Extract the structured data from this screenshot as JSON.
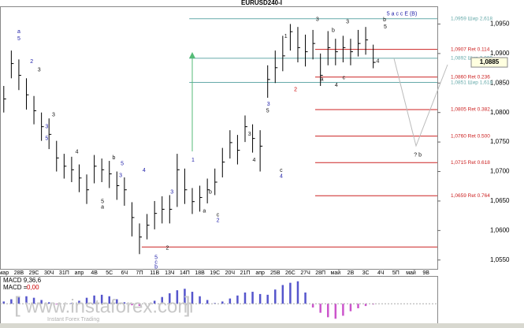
{
  "chart_data": {
    "type": "ohlc",
    "title": "EURUSD240-I",
    "color": "#000000",
    "categories": [
      "мар",
      null,
      "28В",
      null,
      "29С",
      null,
      "30Ч",
      null,
      "31П",
      null,
      "апр",
      null,
      "4В",
      null,
      "5С",
      null,
      "6Ч",
      null,
      "7П",
      null,
      "11В",
      null,
      "13Ч",
      null,
      "14П",
      null,
      "18В",
      null,
      "19С",
      null,
      "20Ч",
      null,
      "21П",
      null,
      "апр",
      null,
      "25В",
      null,
      "26С",
      null,
      "27Ч",
      null,
      "28П",
      null,
      "май",
      null,
      "2В",
      null,
      "3С",
      null,
      "4Ч",
      null,
      "5П",
      null,
      "май",
      null,
      "9В",
      null
    ],
    "high": [
      1.0845,
      1.0905,
      1.089,
      1.0858,
      1.0828,
      1.08,
      1.079,
      1.0752,
      1.073,
      1.0725,
      1.0712,
      1.0695,
      1.0728,
      1.0722,
      1.0718,
      1.07,
      1.069,
      1.0648,
      1.0612,
      1.0628,
      1.065,
      1.0658,
      1.066,
      1.073,
      1.0705,
      1.0672,
      1.0676,
      1.0688,
      1.0705,
      1.074,
      1.077,
      1.0762,
      1.0795,
      1.078,
      1.077,
      1.088,
      1.0905,
      1.093,
      1.095,
      1.0945,
      1.0932,
      1.094,
      1.09,
      1.0938,
      1.0925,
      1.093,
      1.0925,
      1.094,
      1.0945,
      1.0915,
      null,
      null,
      null,
      null,
      null,
      null,
      null,
      null
    ],
    "low": [
      1.08,
      1.0858,
      1.0838,
      1.0805,
      1.078,
      1.0752,
      1.0738,
      1.07,
      1.0688,
      1.0682,
      1.0665,
      1.0645,
      1.068,
      1.0682,
      1.0672,
      1.0652,
      1.0642,
      1.059,
      1.056,
      1.0585,
      1.0602,
      1.0612,
      1.0612,
      1.064,
      1.0645,
      1.0628,
      1.0632,
      1.0646,
      1.066,
      1.069,
      1.0722,
      1.0712,
      1.075,
      1.0732,
      1.07,
      1.0825,
      1.085,
      1.087,
      1.0905,
      1.0885,
      1.0878,
      1.089,
      1.0845,
      1.088,
      1.088,
      1.0885,
      1.088,
      1.0895,
      1.0898,
      1.0875,
      null,
      null,
      null,
      null,
      null,
      null,
      null,
      null
    ],
    "close": [
      1.0823,
      1.0883,
      1.0863,
      1.083,
      1.0803,
      1.0776,
      1.0763,
      1.0723,
      1.0709,
      1.0703,
      1.0689,
      1.0669,
      1.0709,
      1.0703,
      1.0696,
      1.0676,
      1.0669,
      1.0622,
      1.0589,
      1.0609,
      1.0629,
      1.0636,
      1.0636,
      1.0703,
      1.0669,
      1.0649,
      1.0656,
      1.0669,
      1.0682,
      1.0716,
      1.0749,
      1.0736,
      1.0776,
      1.0756,
      1.0743,
      1.0856,
      1.0876,
      1.0896,
      1.0937,
      1.091,
      1.0903,
      1.0917,
      1.0863,
      1.091,
      1.0903,
      1.091,
      1.0903,
      1.0917,
      1.0923,
      1.0885,
      null,
      null,
      null,
      null,
      null,
      null,
      null,
      null
    ],
    "ylim": [
      1.0535,
      1.098
    ],
    "yticks": [
      {
        "value": 1.055,
        "label": "1,0550"
      },
      {
        "value": 1.06,
        "label": "1,0600"
      },
      {
        "value": 1.065,
        "label": "1,0650"
      },
      {
        "value": 1.07,
        "label": "1,0700"
      },
      {
        "value": 1.075,
        "label": "1,0750"
      },
      {
        "value": 1.08,
        "label": "1,0800"
      },
      {
        "value": 1.085,
        "label": "1,0850"
      },
      {
        "value": 1.09,
        "label": "1,0900"
      },
      {
        "value": 1.095,
        "label": "1,0950"
      }
    ],
    "last_price": {
      "value": 1.0885,
      "label": "1,0885"
    },
    "levels": [
      {
        "value": 1.0959,
        "label": "1,0959 Шир 2,618",
        "color": "#66aaaa",
        "from": 24.6
      },
      {
        "value": 1.0907,
        "label": "1,0907 Ret 0.114",
        "color": "#cc2222",
        "from": 41.3
      },
      {
        "value": 1.0892,
        "label": "1,0892 Шир 2,000",
        "color": "#66aaaa",
        "from": 24.6
      },
      {
        "value": 1.086,
        "label": "1,0860 Ret 0.236",
        "color": "#cc2222",
        "from": 41.3
      },
      {
        "value": 1.0851,
        "label": "1,0851 Шир 1,618",
        "color": "#66aaaa",
        "from": 24.6
      },
      {
        "value": 1.0805,
        "label": "1,0805 Ret 0.382",
        "color": "#cc2222",
        "from": 41.3
      },
      {
        "value": 1.076,
        "label": "1,0760 Ret 0.500",
        "color": "#cc2222",
        "from": 41.3
      },
      {
        "value": 1.0715,
        "label": "1,0715 Ret 0.618",
        "color": "#cc2222",
        "from": 41.3
      },
      {
        "value": 1.0659,
        "label": "1,0659 Ret 0.764",
        "color": "#cc2222",
        "from": 41.3
      },
      {
        "value": 1.0572,
        "color": "#cc2222",
        "from": 18.3
      }
    ],
    "annotations": [
      {
        "text": "a",
        "x": 2,
        "y": 1.0937,
        "color": "#2222aa"
      },
      {
        "text": "5",
        "x": 2,
        "y": 1.0925,
        "color": "#2222aa"
      },
      {
        "text": "2",
        "x": 3.7,
        "y": 1.0886,
        "color": "#2222aa"
      },
      {
        "text": "3",
        "x": 4.7,
        "y": 1.0872,
        "color": "#111111"
      },
      {
        "text": "3",
        "x": 6.6,
        "y": 1.0796,
        "color": "#111111"
      },
      {
        "text": "3",
        "x": 5.7,
        "y": 1.0776,
        "color": "#2222aa"
      },
      {
        "text": "5",
        "x": 5.7,
        "y": 1.0756,
        "color": "#2222aa"
      },
      {
        "text": "4",
        "x": 9.7,
        "y": 1.0733,
        "color": "#111111"
      },
      {
        "text": "b",
        "x": 14.6,
        "y": 1.0723,
        "color": "#111111"
      },
      {
        "text": "5",
        "x": 15.7,
        "y": 1.0713,
        "color": "#2222aa"
      },
      {
        "text": "3",
        "x": 15.5,
        "y": 1.0693,
        "color": "#2222aa"
      },
      {
        "text": "4",
        "x": 18.6,
        "y": 1.0702,
        "color": "#2222aa"
      },
      {
        "text": "5",
        "x": 13.1,
        "y": 1.0649,
        "color": "#111111"
      },
      {
        "text": "a",
        "x": 13.1,
        "y": 1.064,
        "color": "#111111"
      },
      {
        "text": "5",
        "x": 20.2,
        "y": 1.0554,
        "color": "#2222aa"
      },
      {
        "text": "c",
        "x": 20.2,
        "y": 1.0546,
        "color": "#2222aa"
      },
      {
        "text": "b",
        "x": 20.2,
        "y": 1.0538,
        "color": "#2222aa"
      },
      {
        "text": "2",
        "x": 21.7,
        "y": 1.057,
        "color": "#111111"
      },
      {
        "text": "3",
        "x": 22.3,
        "y": 1.0665,
        "color": "#2222aa"
      },
      {
        "text": "1",
        "x": 25.1,
        "y": 1.0719,
        "color": "#2222aa"
      },
      {
        "text": "a",
        "x": 26.6,
        "y": 1.0633,
        "color": "#111111"
      },
      {
        "text": "b",
        "x": 27.4,
        "y": 1.0665,
        "color": "#111111"
      },
      {
        "text": "c",
        "x": 28.4,
        "y": 1.0626,
        "color": "#111111"
      },
      {
        "text": "2",
        "x": 28.4,
        "y": 1.0617,
        "color": "#2222aa"
      },
      {
        "text": "3",
        "x": 32.6,
        "y": 1.0763,
        "color": "#111111"
      },
      {
        "text": "4",
        "x": 33.2,
        "y": 1.0719,
        "color": "#111111"
      },
      {
        "text": "5",
        "x": 35,
        "y": 1.0803,
        "color": "#111111"
      },
      {
        "text": "3",
        "x": 35.1,
        "y": 1.0814,
        "color": "#2222aa"
      },
      {
        "text": "c",
        "x": 36.8,
        "y": 1.0702,
        "color": "#111111"
      },
      {
        "text": "4",
        "x": 36.8,
        "y": 1.0692,
        "color": "#2222aa"
      },
      {
        "text": "1",
        "x": 37.4,
        "y": 1.0929,
        "color": "#111111"
      },
      {
        "text": "2",
        "x": 38.7,
        "y": 1.0839,
        "color": "#cc0000"
      },
      {
        "text": "3",
        "x": 41.6,
        "y": 1.0958,
        "color": "#111111"
      },
      {
        "text": "a",
        "x": 42.2,
        "y": 1.0856,
        "color": "#111111"
      },
      {
        "text": "b",
        "x": 43.7,
        "y": 1.0939,
        "color": "#111111"
      },
      {
        "text": "4",
        "x": 44.1,
        "y": 1.0846,
        "color": "#111111"
      },
      {
        "text": "c",
        "x": 45.1,
        "y": 1.0859,
        "color": "#111111"
      },
      {
        "text": "3",
        "x": 45.6,
        "y": 1.0954,
        "color": "#111111"
      },
      {
        "text": "4",
        "x": 49.6,
        "y": 1.0887,
        "color": "#111111"
      },
      {
        "text": "b",
        "x": 50.5,
        "y": 1.0957,
        "color": "#111111"
      },
      {
        "text": "5",
        "x": 50.6,
        "y": 1.0945,
        "color": "#111111"
      },
      {
        "text": "5 a c c E (B)",
        "x": 52.8,
        "y": 1.0967,
        "color": "#2222aa"
      },
      {
        "text": "? b",
        "x": 54.9,
        "y": 1.0728,
        "color": "#111111"
      }
    ],
    "macd": {
      "type": "bar",
      "title": "MACD 9,36,6",
      "readout_name": "MACD =",
      "readout": {
        "value": 0,
        "label": "0,00"
      },
      "colors": [
        "#5555cc",
        "#cc55cc"
      ],
      "ylim": [
        -0.0025,
        0.0035
      ],
      "values": [
        0.0003,
        0.0006,
        0.0009,
        0.001,
        0.0008,
        0.0005,
        0.0002,
        -0.0001,
        0,
        0.0001,
        0.0004,
        0.0008,
        0.0011,
        0.0012,
        0.001,
        0.0006,
        0.0002,
        -0.0002,
        -0.0003,
        0,
        0.0004,
        0.0009,
        0.0014,
        0.0018,
        0.002,
        0.0016,
        0.001,
        0.0005,
        0.0001,
        0.0003,
        0.0007,
        0.0011,
        0.0015,
        0.0016,
        0.0013,
        0.0012,
        0.0019,
        0.0025,
        0.0028,
        0.003,
        0.0015,
        -0.0005,
        -0.0012,
        -0.0018,
        -0.002,
        -0.0016,
        -0.001,
        -0.0006,
        -0.0003,
        -0.0001,
        null,
        null,
        null,
        null,
        null,
        null,
        null,
        null
      ]
    },
    "watermark": {
      "text": "www.instaforex.com",
      "tagline": "Instant Forex Trading"
    }
  }
}
